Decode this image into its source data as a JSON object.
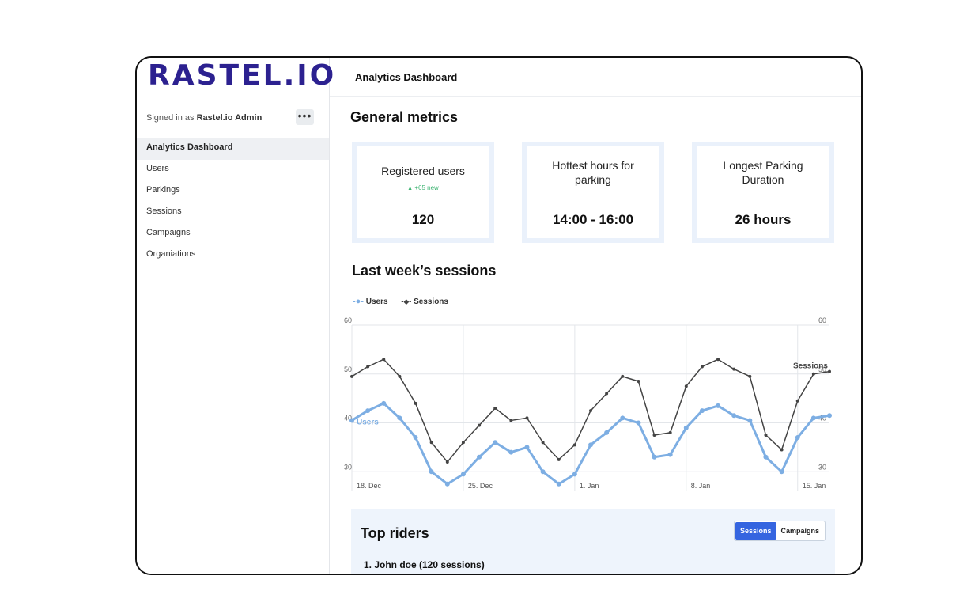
{
  "sidebar": {
    "logo": "RASTEL.IO",
    "signed_prefix": "Signed in as",
    "signed_user": "Rastel.io Admin",
    "more_label": "•••",
    "items": [
      {
        "label": "Analytics Dashboard",
        "active": true
      },
      {
        "label": "Users"
      },
      {
        "label": "Parkings"
      },
      {
        "label": "Sessions"
      },
      {
        "label": "Campaigns"
      },
      {
        "label": "Organiations"
      }
    ]
  },
  "header": {
    "title": "Analytics Dashboard"
  },
  "metrics": {
    "title": "General metrics",
    "cards": [
      {
        "label": "Registered users",
        "badge": "+65 new",
        "value": "120"
      },
      {
        "label": "Hottest hours for parking",
        "value": "14:00 - 16:00"
      },
      {
        "label": "Longest Parking Duration",
        "value": "26 hours"
      }
    ]
  },
  "sessions_section": {
    "title": "Last week’s sessions"
  },
  "chart_data": {
    "type": "line",
    "legend_position": "top-left",
    "grid": true,
    "ylim": [
      26,
      60
    ],
    "yticks": [
      30,
      40,
      50,
      60
    ],
    "xtick_labels": [
      {
        "label": "18. Dec",
        "index": 0
      },
      {
        "label": "25. Dec",
        "index": 7
      },
      {
        "label": "1. Jan",
        "index": 14
      },
      {
        "label": "8. Jan",
        "index": 21
      },
      {
        "label": "15. Jan",
        "index": 28
      }
    ],
    "series": [
      {
        "name": "Users",
        "color": "#7daee3",
        "values": [
          40.5,
          42.5,
          44,
          41,
          37,
          30,
          27.5,
          29.5,
          33,
          36,
          34,
          35,
          30,
          27.5,
          29.5,
          35.5,
          38,
          41,
          40,
          33,
          33.5,
          39,
          42.5,
          43.5,
          41.5,
          40.5,
          33,
          30,
          37,
          41,
          41.5
        ]
      },
      {
        "name": "Sessions",
        "color": "#444444",
        "values": [
          49.5,
          51.5,
          53,
          49.5,
          44,
          36,
          32,
          36,
          39.5,
          43,
          40.5,
          41,
          36,
          32.5,
          35.5,
          42.5,
          46,
          49.5,
          48.5,
          37.5,
          38,
          47.5,
          51.5,
          53,
          51,
          49.5,
          37.5,
          34.5,
          44.5,
          50,
          50.5
        ]
      }
    ]
  },
  "riders": {
    "title": "Top riders",
    "tabs": [
      "Sessions",
      "Campaigns"
    ],
    "active_tab": "Sessions",
    "rows": [
      "1. John doe (120 sessions)"
    ]
  },
  "colors": {
    "brand": "#2c2190",
    "accent": "#3565e0",
    "users_line": "#7daee3",
    "sessions_line": "#444444",
    "badge": "#3cb371"
  }
}
